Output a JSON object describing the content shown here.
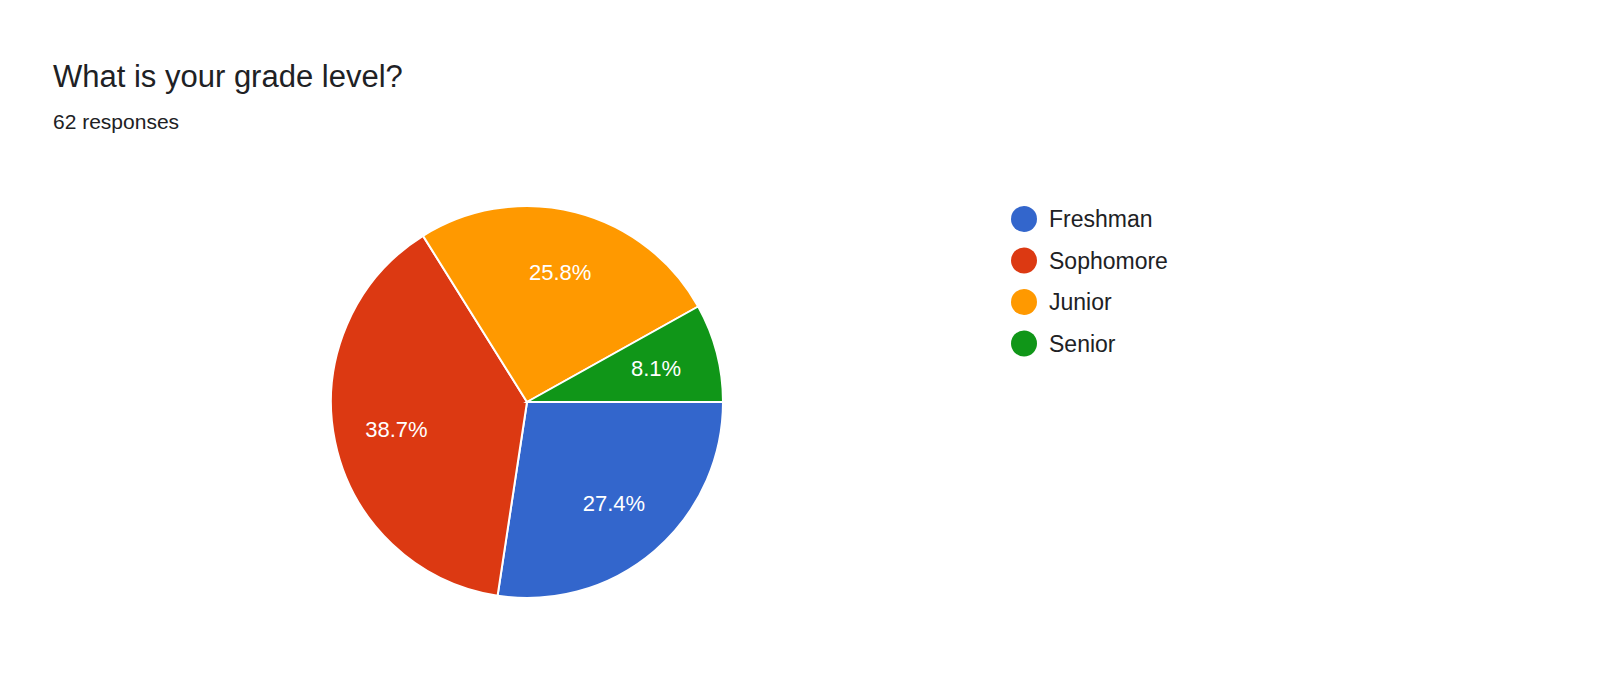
{
  "chart_data": {
    "type": "pie",
    "title": "What is your grade level?",
    "subtitle": "62 responses",
    "categories": [
      "Freshman",
      "Sophomore",
      "Junior",
      "Senior"
    ],
    "values": [
      27.4,
      38.7,
      25.8,
      8.1
    ],
    "value_labels": [
      "27.4%",
      "38.7%",
      "25.8%",
      "8.1%"
    ],
    "colors": [
      "#3366cc",
      "#dc3912",
      "#ff9900",
      "#109618"
    ],
    "data_labels": true,
    "legend": "right"
  }
}
